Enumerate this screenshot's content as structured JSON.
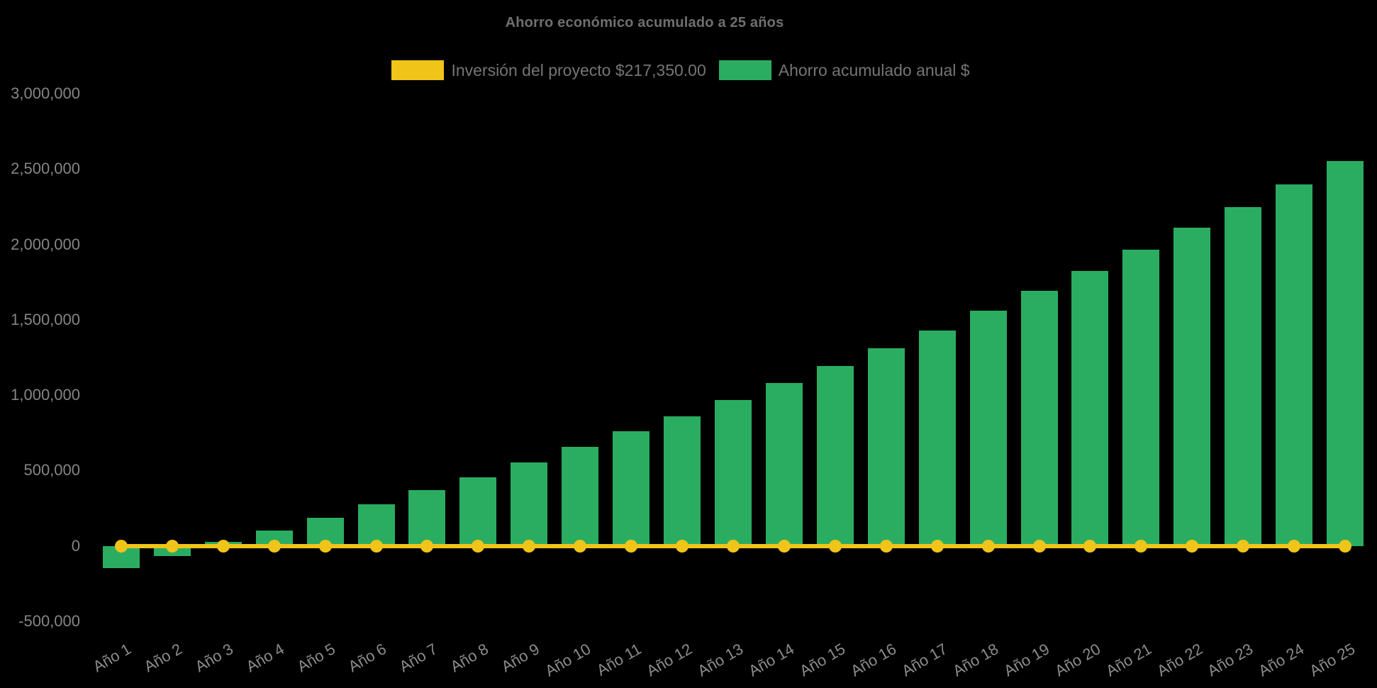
{
  "page": {
    "background": "#000000"
  },
  "chart_data": {
    "type": "bar",
    "title": "Ahorro económico acumulado a 25 años",
    "categories": [
      "Año 1",
      "Año 2",
      "Año 3",
      "Año 4",
      "Año 5",
      "Año 6",
      "Año 7",
      "Año 8",
      "Año 9",
      "Año 10",
      "Año 11",
      "Año 12",
      "Año 13",
      "Año 14",
      "Año 15",
      "Año 16",
      "Año 17",
      "Año 18",
      "Año 19",
      "Año 20",
      "Año 21",
      "Año 22",
      "Año 23",
      "Año 24",
      "Año 25"
    ],
    "series": [
      {
        "name": "Inversión del proyecto $217,350.00",
        "type": "line",
        "color": "#f0c419",
        "point_style": "circle",
        "values": [
          0,
          0,
          0,
          0,
          0,
          0,
          0,
          0,
          0,
          0,
          0,
          0,
          0,
          0,
          0,
          0,
          0,
          0,
          0,
          0,
          0,
          0,
          0,
          0,
          0
        ]
      },
      {
        "name": "Ahorro acumulado anual $",
        "type": "bar",
        "color": "#2bad61",
        "values": [
          -145000,
          -65000,
          25000,
          100000,
          185000,
          275000,
          370000,
          455000,
          555000,
          655000,
          760000,
          860000,
          970000,
          1080000,
          1195000,
          1310000,
          1430000,
          1560000,
          1690000,
          1825000,
          1965000,
          2110000,
          2245000,
          2400000,
          2555000
        ]
      }
    ],
    "xlabel": "",
    "ylabel": "",
    "ylim": [
      -500000,
      3000000
    ],
    "yticks": [
      {
        "value": 3000000,
        "label": "3,000,000"
      },
      {
        "value": 2500000,
        "label": "2,500,000"
      },
      {
        "value": 2000000,
        "label": "2,000,000"
      },
      {
        "value": 1500000,
        "label": "1,500,000"
      },
      {
        "value": 1000000,
        "label": "1,000,000"
      },
      {
        "value": 500000,
        "label": "500,000"
      },
      {
        "value": 0,
        "label": "0"
      },
      {
        "value": -500000,
        "label": "-500,000"
      }
    ],
    "grid": false,
    "legend_position": "top",
    "background": "#000000"
  }
}
